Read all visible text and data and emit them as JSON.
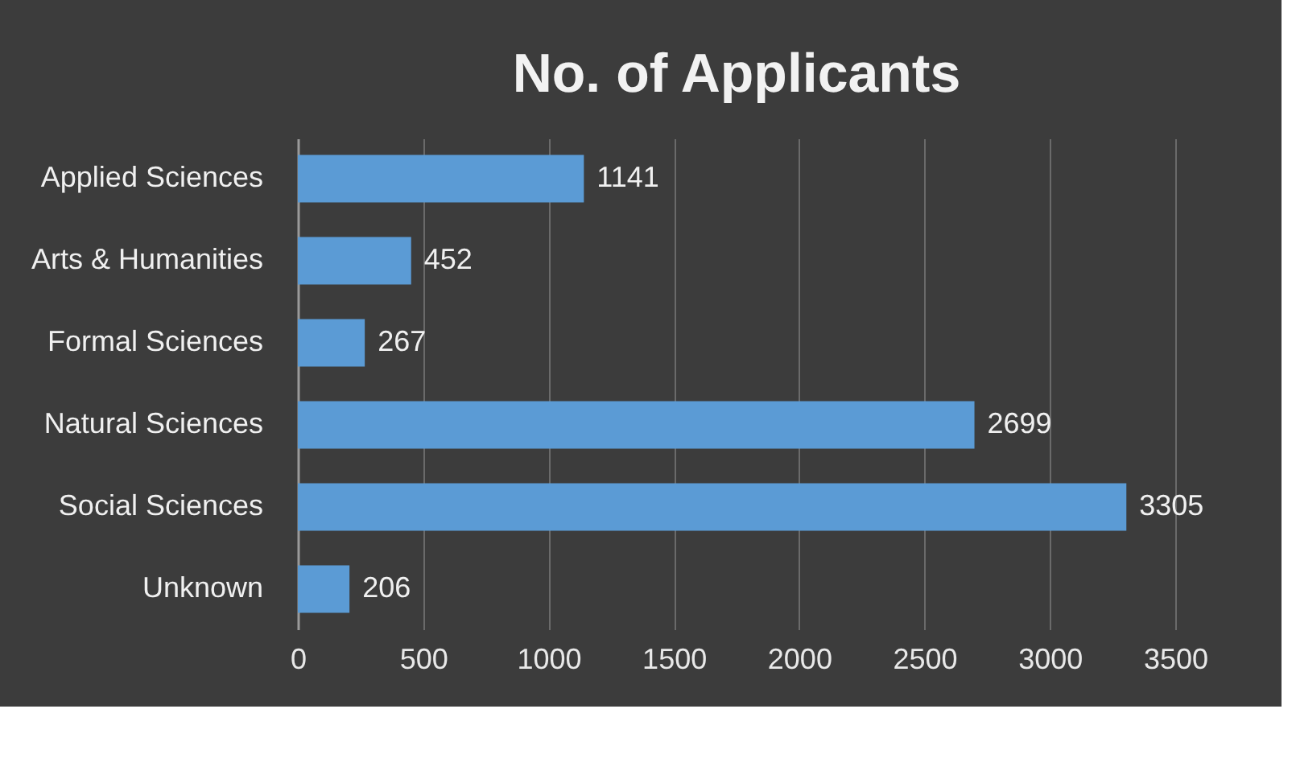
{
  "chart_data": {
    "type": "bar",
    "orientation": "horizontal",
    "title": "No. of Applicants",
    "categories": [
      "Applied Sciences",
      "Arts & Humanities",
      "Formal Sciences",
      "Natural Sciences",
      "Social Sciences",
      "Unknown"
    ],
    "values": [
      1141,
      452,
      267,
      2699,
      3305,
      206
    ],
    "color": "#5b9bd5",
    "xlim": [
      0,
      3500
    ],
    "xticks": [
      0,
      500,
      1000,
      1500,
      2000,
      2500,
      3000,
      3500
    ],
    "grid": "x",
    "data_labels": true
  }
}
